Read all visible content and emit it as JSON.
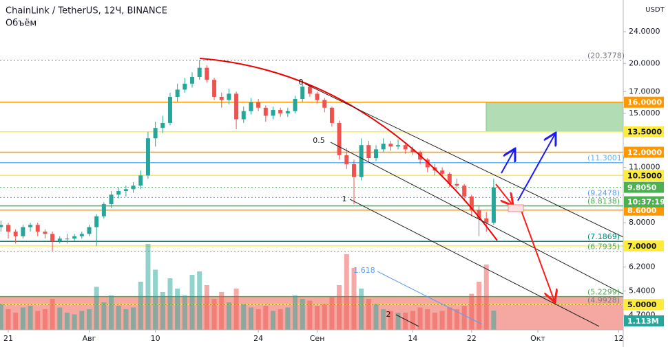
{
  "chart_data": {
    "type": "candlestick",
    "title": "ChainLink / TetherUS, 12Ч, BINANCE",
    "subtitle": "Объём",
    "y_unit": "USDT",
    "log_scale": true,
    "ylim": [
      4.32,
      28.8
    ],
    "yticks": [
      {
        "value": 24,
        "label": "24.0000"
      },
      {
        "value": 20,
        "label": "20.0000"
      },
      {
        "value": 17,
        "label": "17.0000"
      },
      {
        "value": 15,
        "label": "15.0000"
      },
      {
        "value": 11,
        "label": "11.0000"
      },
      {
        "value": 8,
        "label": "8.0000"
      },
      {
        "value": 6.2,
        "label": "6.2000"
      },
      {
        "value": 5.4,
        "label": "5.4000"
      },
      {
        "value": 4.7,
        "label": "4.7000"
      }
    ],
    "categories": [
      null,
      "21",
      null,
      null,
      null,
      null,
      null,
      null,
      null,
      null,
      null,
      null,
      "Авг",
      null,
      null,
      null,
      null,
      null,
      null,
      null,
      null,
      "10",
      null,
      null,
      null,
      null,
      null,
      null,
      null,
      null,
      null,
      null,
      null,
      null,
      null,
      "24",
      null,
      null,
      null,
      null,
      null,
      null,
      null,
      "Сен",
      null,
      null,
      null,
      null,
      null,
      null,
      null,
      null,
      null,
      null,
      null,
      null,
      "14",
      null,
      null,
      null,
      null,
      null,
      null,
      null,
      "22",
      null,
      null,
      null,
      null,
      null,
      null,
      null,
      null,
      "Окт",
      null,
      null,
      null,
      null,
      null,
      null,
      null,
      null,
      null,
      null,
      "12"
    ],
    "up_color": "#26a69a",
    "down_color": "#ef5350",
    "open": [
      7.8,
      7.9,
      7.6,
      7.4,
      7.8,
      7.9,
      7.6,
      7.5,
      7.2,
      7.3,
      7.3,
      7.4,
      7.5,
      7.8,
      8.3,
      8.9,
      9.4,
      9.6,
      9.7,
      9.9,
      10.5,
      13.0,
      13.8,
      14.2,
      16.5,
      17.2,
      17.8,
      18.5,
      19.5,
      18.2,
      16.5,
      16.2,
      16.8,
      14.5,
      15.2,
      16.0,
      15.5,
      14.8,
      15.3,
      15.0,
      15.2,
      16.3,
      17.5,
      16.8,
      16.2,
      15.5,
      14.2,
      11.8,
      11.2,
      10.4,
      12.5,
      11.6,
      12.2,
      12.6,
      12.4,
      12.5,
      12.2,
      12.0,
      11.5,
      11.0,
      10.8,
      10.6,
      10.0,
      9.9,
      9.3,
      8.6,
      8.2,
      8.0,
      null,
      null,
      null,
      null,
      null,
      null,
      null,
      null,
      null,
      null,
      null,
      null,
      null,
      null,
      null,
      null,
      null
    ],
    "high": [
      8.1,
      8.0,
      7.7,
      7.9,
      8.0,
      8.0,
      7.7,
      7.6,
      7.4,
      7.5,
      7.5,
      7.6,
      7.9,
      8.4,
      9.0,
      9.6,
      9.8,
      9.9,
      10.1,
      10.8,
      13.5,
      14.3,
      14.8,
      16.9,
      17.8,
      18.4,
      19.0,
      20.4,
      19.8,
      18.4,
      16.9,
      17.3,
      17.0,
      15.6,
      16.4,
      16.3,
      15.7,
      15.6,
      15.5,
      15.5,
      16.6,
      17.9,
      17.7,
      17.0,
      16.4,
      15.6,
      14.4,
      12.3,
      11.5,
      13.0,
      12.8,
      12.5,
      13.0,
      12.8,
      12.9,
      12.6,
      12.4,
      12.1,
      11.6,
      11.2,
      11.0,
      10.7,
      10.3,
      10.0,
      9.4,
      8.8,
      8.5,
      10.3,
      null,
      null,
      null,
      null,
      null,
      null,
      null,
      null,
      null,
      null,
      null,
      null,
      null,
      null,
      null,
      null,
      null
    ],
    "low": [
      7.6,
      7.3,
      7.1,
      7.3,
      7.6,
      7.4,
      7.3,
      6.8,
      7.1,
      7.1,
      7.2,
      7.3,
      7.4,
      7.0,
      8.2,
      8.7,
      9.2,
      9.3,
      9.5,
      9.7,
      10.3,
      12.4,
      13.4,
      14.0,
      16.0,
      16.9,
      17.4,
      18.2,
      17.9,
      16.2,
      15.5,
      15.8,
      13.7,
      14.2,
      14.9,
      15.2,
      14.3,
      14.5,
      14.7,
      14.7,
      15.0,
      16.0,
      16.5,
      15.9,
      15.1,
      13.9,
      11.5,
      10.9,
      8.9,
      10.2,
      11.3,
      11.4,
      12.0,
      12.1,
      12.2,
      11.9,
      11.8,
      11.2,
      10.7,
      10.5,
      10.4,
      9.8,
      9.7,
      9.1,
      8.3,
      7.4,
      7.6,
      7.9,
      null,
      null,
      null,
      null,
      null,
      null,
      null,
      null,
      null,
      null,
      null,
      null,
      null,
      null,
      null,
      null,
      null
    ],
    "close": [
      7.9,
      7.6,
      7.4,
      7.8,
      7.9,
      7.6,
      7.5,
      7.2,
      7.3,
      7.3,
      7.4,
      7.5,
      7.8,
      8.3,
      8.9,
      9.4,
      9.6,
      9.7,
      9.9,
      10.5,
      13.0,
      13.8,
      14.2,
      16.5,
      17.2,
      17.8,
      18.5,
      19.5,
      18.2,
      16.5,
      16.2,
      16.8,
      14.5,
      15.2,
      16.0,
      15.5,
      14.8,
      15.3,
      15.0,
      15.2,
      16.3,
      17.5,
      16.8,
      16.2,
      15.5,
      14.2,
      11.8,
      11.2,
      10.4,
      12.5,
      11.6,
      12.2,
      12.6,
      12.4,
      12.5,
      12.2,
      12.0,
      11.5,
      11.0,
      10.8,
      10.6,
      10.0,
      9.9,
      9.3,
      8.6,
      8.2,
      8.0,
      9.8,
      null,
      null,
      null,
      null,
      null,
      null,
      null,
      null,
      null,
      null,
      null,
      null,
      null,
      null,
      null,
      null,
      null
    ],
    "volume": [
      1.5,
      1.2,
      1.0,
      1.3,
      1.4,
      1.1,
      1.2,
      1.8,
      1.3,
      1.0,
      0.9,
      1.1,
      1.2,
      2.5,
      1.6,
      2.0,
      1.4,
      1.2,
      1.3,
      2.8,
      5.0,
      3.5,
      2.2,
      3.0,
      2.4,
      2.0,
      3.2,
      3.4,
      2.6,
      1.8,
      2.2,
      1.6,
      2.4,
      1.5,
      1.3,
      1.2,
      1.4,
      1.1,
      1.2,
      1.3,
      2.0,
      1.8,
      1.7,
      1.4,
      1.5,
      1.9,
      2.6,
      4.4,
      3.6,
      2.4,
      1.8,
      1.5,
      1.2,
      1.1,
      1.0,
      1.0,
      1.1,
      1.3,
      1.2,
      1.0,
      1.1,
      1.3,
      1.2,
      1.4,
      2.1,
      2.8,
      3.8,
      1.113,
      null,
      null,
      null,
      null,
      null,
      null,
      null,
      null,
      null,
      null,
      null,
      null,
      null,
      null,
      null,
      null,
      null
    ],
    "volume_label": "1.113M",
    "countdown": "10:37:19",
    "levels": [
      {
        "value": 20.3778,
        "label": "(20.3778)",
        "color": "#787b86",
        "line": "dotted",
        "tag": false
      },
      {
        "value": 16,
        "label": "16.0000",
        "color": "#ff9800",
        "line": "solid",
        "tag": true
      },
      {
        "value": 13.5,
        "label": "13.5000",
        "color": "#ffeb3b",
        "line": "solid",
        "tag": true
      },
      {
        "value": 12,
        "label": "12.0000",
        "color": "#ff9800",
        "line": "solid",
        "tag": true
      },
      {
        "value": 11.3001,
        "label": "(11.3001)",
        "color": "#64b5f6",
        "line": "solid",
        "tag": false
      },
      {
        "value": 10.5,
        "label": "10.5000",
        "color": "#ffeb3b",
        "line": "solid",
        "tag": true
      },
      {
        "value": 9.805,
        "label": "9.8050",
        "color": "#4caf50",
        "line": "dotted",
        "tag": true
      },
      {
        "value": 9.2478,
        "label": "(9.2478)",
        "color": "#5b9cf6",
        "line": "dotted",
        "tag": false
      },
      {
        "value": 8.8138,
        "label": "(8.8138)",
        "color": "#4caf50",
        "line": "solid",
        "tag": false
      },
      {
        "value": 8.6,
        "label": "8.6000",
        "color": "#ff9800",
        "line": "solid",
        "tag": true
      },
      {
        "value": 7.1869,
        "label": "(7.1869)",
        "color": "#00897b",
        "line": "solid",
        "tag": false
      },
      {
        "value": 7.0,
        "label": "7.0000",
        "color": "#ffeb3b",
        "line": "solid",
        "tag": true
      },
      {
        "value": 6.7935,
        "label": "(6.7935)",
        "color": "#4caf50",
        "line": "dotted",
        "tag": false
      },
      {
        "value": 5.2299,
        "label": "(5.2299)",
        "color": "#4caf50",
        "line": "solid",
        "tag": false
      },
      {
        "value": 5.0,
        "label": "5.0000",
        "color": "#ffeb3b",
        "line": "solid",
        "tag": true
      },
      {
        "value": 4.9928,
        "label": "(4.9928)",
        "color": "#787b86",
        "line": "dotted",
        "tag": false
      }
    ],
    "zones": [
      {
        "from": 13.5,
        "to": 16,
        "color": "#a5d6a7"
      },
      {
        "from": 4.32,
        "to": 5.2299,
        "color": "#f28b82"
      }
    ],
    "fib_labels": [
      "0",
      "0.5",
      "1",
      "1.618",
      "2"
    ]
  }
}
